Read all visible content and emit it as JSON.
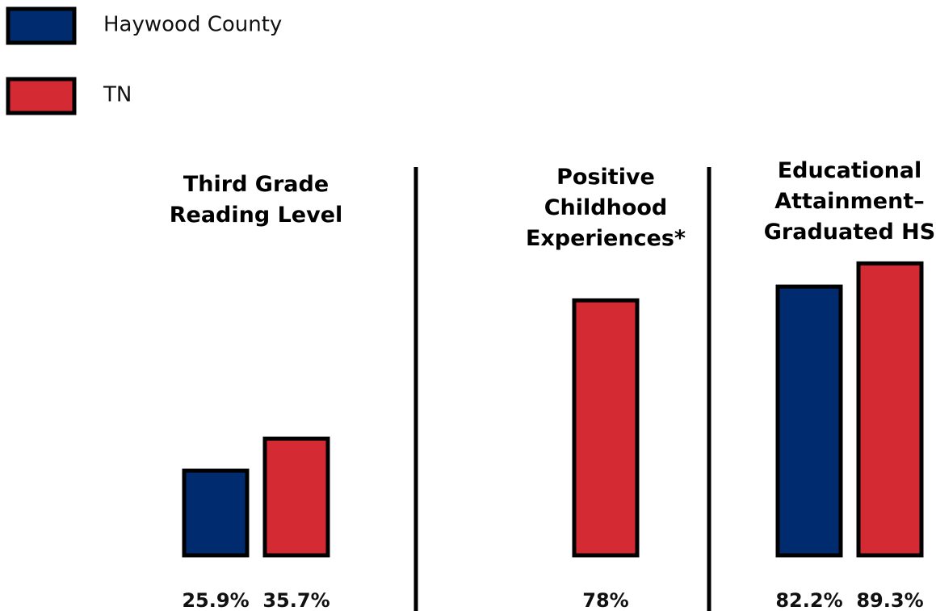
{
  "chart_data": {
    "type": "bar",
    "categories": [
      "Third Grade\nReading Level",
      "Positive\nChildhood\nExperiences*",
      "Educational\nAttainment–\nGraduated HS"
    ],
    "series": [
      {
        "name": "Haywood County",
        "color": "#002b6e",
        "values": [
          25.9,
          null,
          82.2
        ],
        "value_labels": [
          "25.9%",
          null,
          "82.2%"
        ]
      },
      {
        "name": "TN",
        "color": "#d42a34",
        "values": [
          35.7,
          78,
          89.3
        ],
        "value_labels": [
          "35.7%",
          "78%",
          "89.3%"
        ]
      }
    ],
    "ylim": [
      0,
      100
    ]
  }
}
